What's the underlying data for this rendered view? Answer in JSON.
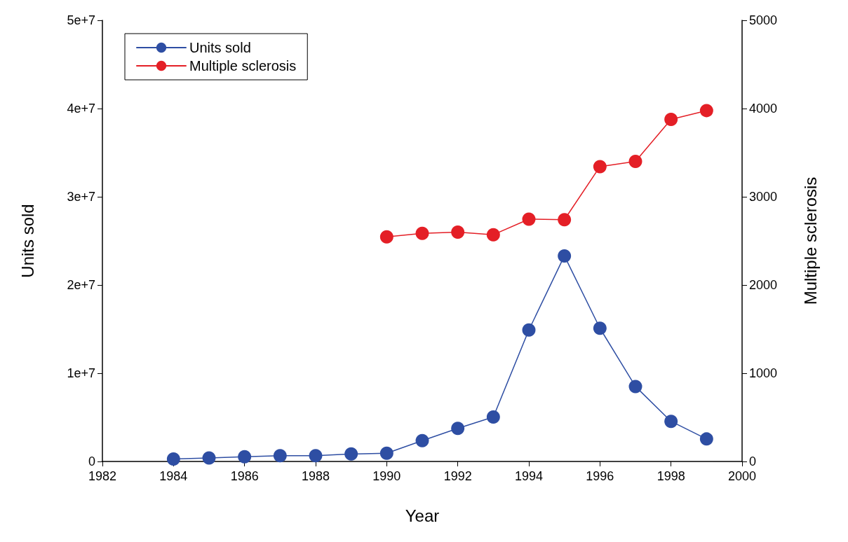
{
  "chart_data": {
    "type": "line",
    "xlabel": "Year",
    "ylabel": "Units sold",
    "y2label": "Multiple sclerosis",
    "xlim": [
      1982,
      2000
    ],
    "xticks": [
      1982,
      1984,
      1986,
      1988,
      1990,
      1992,
      1994,
      1996,
      1998,
      2000
    ],
    "ylim": [
      0,
      50000000
    ],
    "yticks": [
      {
        "value": 0,
        "label": "0"
      },
      {
        "value": 10000000,
        "label": "1e+7"
      },
      {
        "value": 20000000,
        "label": "2e+7"
      },
      {
        "value": 30000000,
        "label": "3e+7"
      },
      {
        "value": 40000000,
        "label": "4e+7"
      },
      {
        "value": 50000000,
        "label": "5e+7"
      }
    ],
    "y2lim": [
      0,
      5000
    ],
    "y2ticks": [
      0,
      1000,
      2000,
      3000,
      4000,
      5000
    ],
    "series": [
      {
        "name": "Units sold",
        "color": "#2e4ea3",
        "x": [
          1984,
          1985,
          1986,
          1987,
          1988,
          1989,
          1990,
          1991,
          1992,
          1993,
          1994,
          1995,
          1996,
          1997,
          1998,
          1999
        ],
        "values": [
          280000,
          390000,
          540000,
          650000,
          650000,
          850000,
          930000,
          2360000,
          3750000,
          5040000,
          14900000,
          23300000,
          15100000,
          8500000,
          4550000,
          2550000
        ]
      },
      {
        "name": "Multiple sclerosis",
        "color": "#e41f26",
        "axis": "y2",
        "x": [
          1990,
          1991,
          1992,
          1993,
          1994,
          1995,
          1996,
          1997,
          1998,
          1999
        ],
        "values": [
          2546,
          2585,
          2600,
          2570,
          2746,
          2740,
          3342,
          3400,
          3877,
          3977
        ]
      }
    ],
    "legend": "top left",
    "grid": false,
    "marker": "circle",
    "line_style": "solid"
  }
}
